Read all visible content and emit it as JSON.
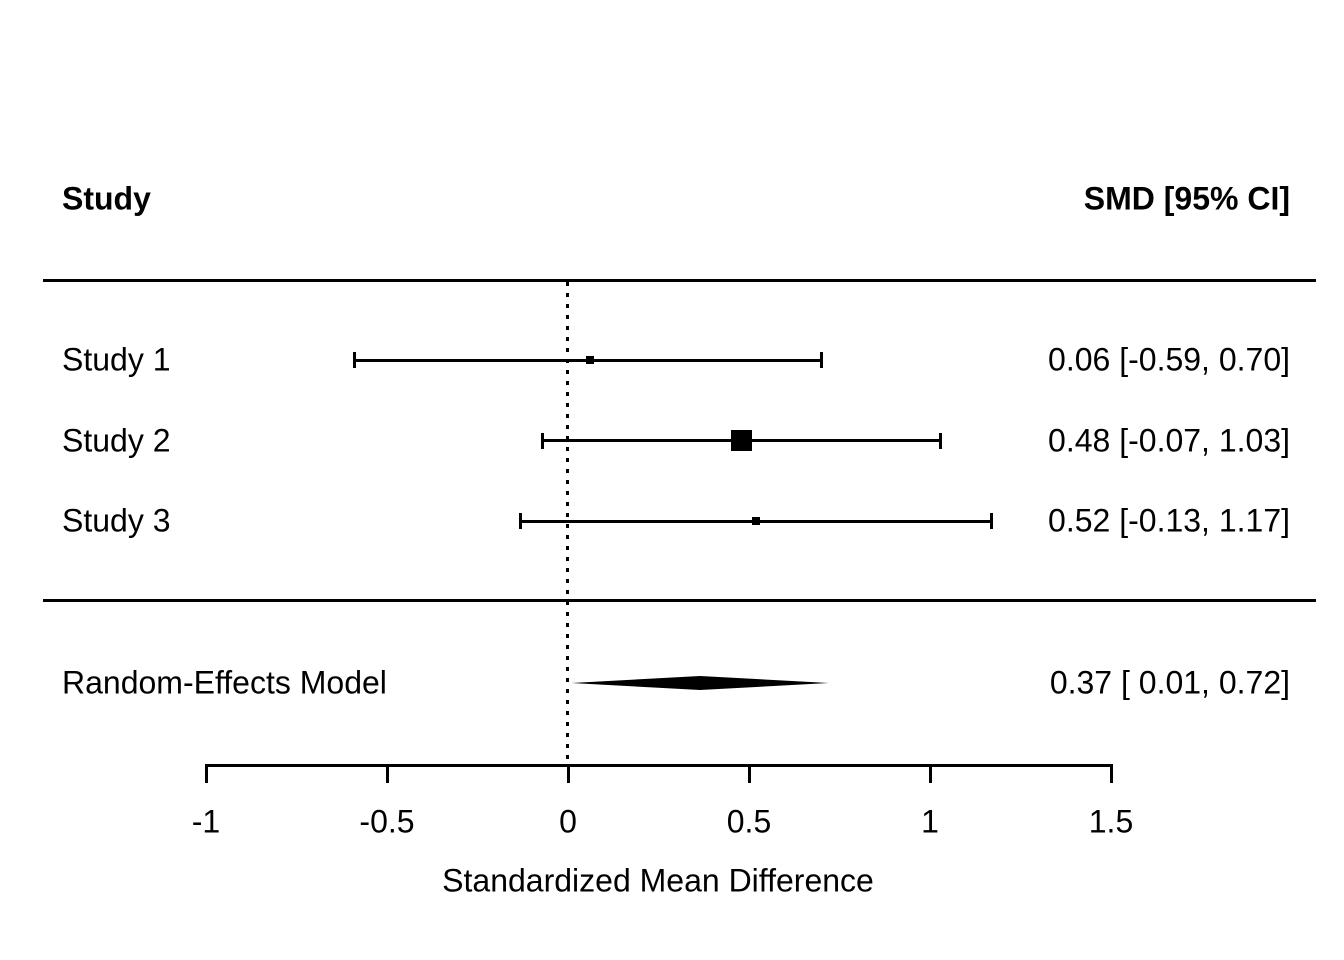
{
  "chart_data": {
    "type": "forest",
    "header": {
      "left": "Study",
      "right": "SMD [95% CI]"
    },
    "studies": [
      {
        "label": "Study 1",
        "estimate": 0.06,
        "ci_lower": -0.59,
        "ci_upper": 0.7,
        "annotation": "0.06 [-0.59, 0.70]",
        "marker_size_px": 8
      },
      {
        "label": "Study 2",
        "estimate": 0.48,
        "ci_lower": -0.07,
        "ci_upper": 1.03,
        "annotation": "0.48 [-0.07, 1.03]",
        "marker_size_px": 21
      },
      {
        "label": "Study 3",
        "estimate": 0.52,
        "ci_lower": -0.13,
        "ci_upper": 1.17,
        "annotation": "0.52 [-0.13, 1.17]",
        "marker_size_px": 8
      }
    ],
    "summary": {
      "label": "Random-Effects Model",
      "estimate": 0.37,
      "ci_lower": 0.01,
      "ci_upper": 0.72,
      "annotation": "0.37 [ 0.01, 0.72]"
    },
    "axis": {
      "xlabel": "Standardized Mean Difference",
      "ticks": [
        -1,
        -0.5,
        0,
        0.5,
        1,
        1.5
      ],
      "tick_labels": [
        "-1",
        "-0.5",
        "0",
        "0.5",
        "1",
        "1.5"
      ],
      "xlim": [
        -1,
        1.5
      ],
      "reference_line": 0
    },
    "colors": {
      "foreground": "#000000",
      "background": "#ffffff"
    }
  }
}
